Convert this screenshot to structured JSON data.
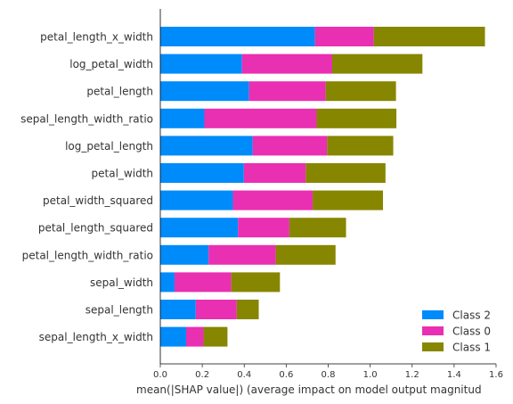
{
  "chart_data": {
    "type": "bar",
    "orientation": "horizontal",
    "stacked": true,
    "xlabel": "mean(|SHAP value|) (average impact on model output magnitud",
    "xlim": [
      0,
      1.6
    ],
    "xticks": [
      "0.0",
      "0.2",
      "0.4",
      "0.6",
      "0.8",
      "1.0",
      "1.2",
      "1.4",
      "1.6"
    ],
    "legend_position": "bottom-right",
    "categories": [
      "petal_length_x_width",
      "log_petal_width",
      "petal_length",
      "sepal_length_width_ratio",
      "log_petal_length",
      "petal_width",
      "petal_width_squared",
      "petal_length_squared",
      "petal_length_width_ratio",
      "sepal_width",
      "sepal_length",
      "sepal_length_x_width"
    ],
    "series": [
      {
        "name": "Class 2",
        "color": "#008bfb",
        "values": [
          0.737,
          0.389,
          0.423,
          0.21,
          0.44,
          0.398,
          0.346,
          0.37,
          0.23,
          0.068,
          0.169,
          0.123
        ]
      },
      {
        "name": "Class 0",
        "color": "#e92fb2",
        "values": [
          0.28,
          0.43,
          0.365,
          0.535,
          0.355,
          0.295,
          0.38,
          0.245,
          0.32,
          0.27,
          0.195,
          0.083
        ]
      },
      {
        "name": "Class 1",
        "color": "#868600",
        "values": [
          0.53,
          0.43,
          0.335,
          0.38,
          0.315,
          0.38,
          0.335,
          0.27,
          0.285,
          0.232,
          0.105,
          0.114
        ]
      }
    ],
    "legend_order": [
      "Class 2",
      "Class 0",
      "Class 1"
    ]
  }
}
